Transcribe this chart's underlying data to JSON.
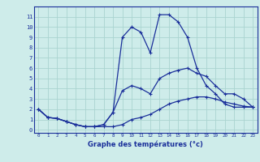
{
  "xlabel": "Graphe des températures (°c)",
  "background_color": "#ceecea",
  "grid_color": "#aad4d0",
  "line_color": "#1a2f9a",
  "x_values": [
    0,
    1,
    2,
    3,
    4,
    5,
    6,
    7,
    8,
    9,
    10,
    11,
    12,
    13,
    14,
    15,
    16,
    17,
    18,
    19,
    20,
    21,
    22,
    23
  ],
  "y_top": [
    2.0,
    1.2,
    1.1,
    0.8,
    0.5,
    0.3,
    0.3,
    0.5,
    1.7,
    9.0,
    10.0,
    9.5,
    7.5,
    11.2,
    11.2,
    10.5,
    9.0,
    6.0,
    4.3,
    3.5,
    2.5,
    2.2,
    2.2,
    2.2
  ],
  "y_mid": [
    2.0,
    1.2,
    1.1,
    0.8,
    0.5,
    0.3,
    0.3,
    0.5,
    1.7,
    3.8,
    4.3,
    4.0,
    3.5,
    5.0,
    5.5,
    5.8,
    6.0,
    5.5,
    5.2,
    4.3,
    3.5,
    3.5,
    3.0,
    2.2
  ],
  "y_bot": [
    2.0,
    1.2,
    1.1,
    0.8,
    0.5,
    0.3,
    0.3,
    0.3,
    0.3,
    0.5,
    1.0,
    1.2,
    1.5,
    2.0,
    2.5,
    2.8,
    3.0,
    3.2,
    3.2,
    3.0,
    2.7,
    2.5,
    2.3,
    2.2
  ],
  "ylim": [
    -0.3,
    12
  ],
  "xlim": [
    -0.5,
    23.5
  ],
  "yticks": [
    0,
    1,
    2,
    3,
    4,
    5,
    6,
    7,
    8,
    9,
    10,
    11
  ],
  "xticks": [
    0,
    1,
    2,
    3,
    4,
    5,
    6,
    7,
    8,
    9,
    10,
    11,
    12,
    13,
    14,
    15,
    16,
    17,
    18,
    19,
    20,
    21,
    22,
    23
  ]
}
